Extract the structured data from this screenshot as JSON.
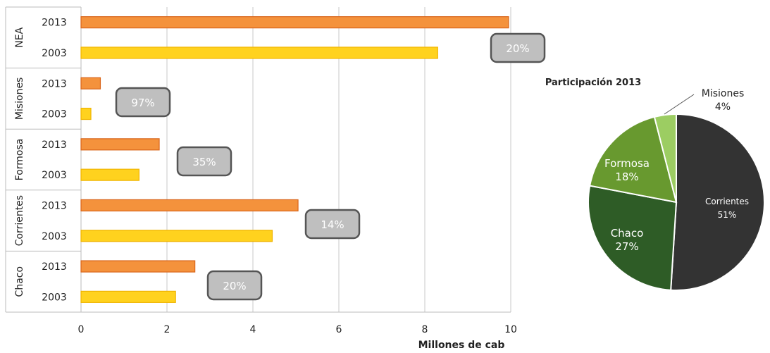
{
  "chart_data": [
    {
      "type": "bar",
      "orientation": "horizontal",
      "xlabel": "Millones de cab",
      "xlim": [
        0,
        10
      ],
      "xticks": [
        0,
        2,
        4,
        6,
        8,
        10
      ],
      "grid": true,
      "groups": [
        {
          "name": "NEA",
          "growth_label": "20%",
          "bars": [
            {
              "year": "2013",
              "value": 9.95
            },
            {
              "year": "2003",
              "value": 8.3
            }
          ]
        },
        {
          "name": "Misiones",
          "growth_label": "97%",
          "bars": [
            {
              "year": "2013",
              "value": 0.45
            },
            {
              "year": "2003",
              "value": 0.23
            }
          ]
        },
        {
          "name": "Formosa",
          "growth_label": "35%",
          "bars": [
            {
              "year": "2013",
              "value": 1.82
            },
            {
              "year": "2003",
              "value": 1.35
            }
          ]
        },
        {
          "name": "Corrientes",
          "growth_label": "14%",
          "bars": [
            {
              "year": "2013",
              "value": 5.05
            },
            {
              "year": "2003",
              "value": 4.45
            }
          ]
        },
        {
          "name": "Chaco",
          "growth_label": "20%",
          "bars": [
            {
              "year": "2013",
              "value": 2.65
            },
            {
              "year": "2003",
              "value": 2.2
            }
          ]
        }
      ],
      "colors": {
        "2013": "#f4923c",
        "2003": "#ffd21e",
        "2013_stroke": "#d9651a",
        "2003_stroke": "#f0b400"
      }
    },
    {
      "type": "pie",
      "title": "Participación 2013",
      "slices": [
        {
          "label": "Corrientes",
          "value": 51,
          "value_label": "51%",
          "color": "#333333"
        },
        {
          "label": "Chaco",
          "value": 27,
          "value_label": "27%",
          "color": "#2e5c26"
        },
        {
          "label": "Formosa",
          "value": 18,
          "value_label": "18%",
          "color": "#68992f"
        },
        {
          "label": "Misiones",
          "value": 4,
          "value_label": "4%",
          "color": "#9ccd62"
        }
      ]
    }
  ]
}
